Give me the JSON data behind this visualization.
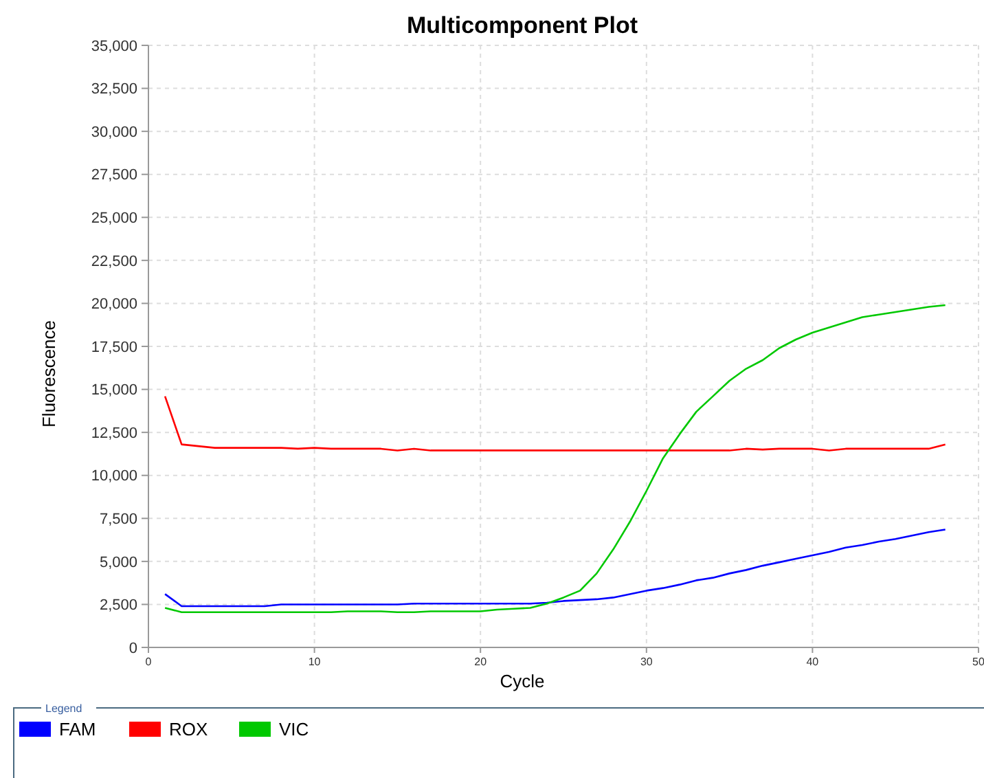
{
  "chart_data": {
    "type": "line",
    "title": "Multicomponent Plot",
    "xlabel": "Cycle",
    "ylabel": "Fluorescence",
    "legend_title": "Legend",
    "legend": "bottom",
    "grid": true,
    "line_style": "solid",
    "x": [
      1,
      2,
      3,
      4,
      5,
      6,
      7,
      8,
      9,
      10,
      11,
      12,
      13,
      14,
      15,
      16,
      17,
      18,
      19,
      20,
      21,
      22,
      23,
      24,
      25,
      26,
      27,
      28,
      29,
      30,
      31,
      32,
      33,
      34,
      35,
      36,
      37,
      38,
      39,
      40,
      41,
      42,
      43,
      44,
      45,
      46,
      47,
      48
    ],
    "xlim": [
      0,
      50
    ],
    "xticks": [
      0,
      10,
      20,
      30,
      40,
      50
    ],
    "ylim": [
      0,
      35000
    ],
    "yticks": [
      {
        "value": 0,
        "label": "0"
      },
      {
        "value": 2500,
        "label": "2,500"
      },
      {
        "value": 5000,
        "label": "5,000"
      },
      {
        "value": 7500,
        "label": "7,500"
      },
      {
        "value": 10000,
        "label": "10,000"
      },
      {
        "value": 12500,
        "label": "12,500"
      },
      {
        "value": 15000,
        "label": "15,000"
      },
      {
        "value": 17500,
        "label": "17,500"
      },
      {
        "value": 20000,
        "label": "20,000"
      },
      {
        "value": 22500,
        "label": "22,500"
      },
      {
        "value": 25000,
        "label": "25,000"
      },
      {
        "value": 27500,
        "label": "27,500"
      },
      {
        "value": 30000,
        "label": "30,000"
      },
      {
        "value": 32500,
        "label": "32,500"
      },
      {
        "value": 35000,
        "label": "35,000"
      }
    ],
    "series": [
      {
        "name": "FAM",
        "color": "#0000ff",
        "values": [
          3100,
          2400,
          2400,
          2400,
          2400,
          2400,
          2400,
          2500,
          2500,
          2500,
          2500,
          2500,
          2500,
          2500,
          2500,
          2550,
          2550,
          2550,
          2550,
          2550,
          2550,
          2550,
          2550,
          2600,
          2700,
          2750,
          2800,
          2900,
          3100,
          3300,
          3450,
          3650,
          3900,
          4050,
          4300,
          4500,
          4750,
          4950,
          5150,
          5350,
          5550,
          5800,
          5950,
          6150,
          6300,
          6500,
          6700,
          6850
        ]
      },
      {
        "name": "ROX",
        "color": "#ff0000",
        "values": [
          14600,
          11800,
          11700,
          11600,
          11600,
          11600,
          11600,
          11600,
          11550,
          11600,
          11550,
          11550,
          11550,
          11550,
          11450,
          11550,
          11450,
          11450,
          11450,
          11450,
          11450,
          11450,
          11450,
          11450,
          11450,
          11450,
          11450,
          11450,
          11450,
          11450,
          11450,
          11450,
          11450,
          11450,
          11450,
          11550,
          11500,
          11550,
          11550,
          11550,
          11450,
          11550,
          11550,
          11550,
          11550,
          11550,
          11550,
          11800
        ]
      },
      {
        "name": "VIC",
        "color": "#00c800",
        "values": [
          2300,
          2050,
          2050,
          2050,
          2050,
          2050,
          2050,
          2050,
          2050,
          2050,
          2050,
          2100,
          2100,
          2100,
          2050,
          2050,
          2100,
          2100,
          2100,
          2100,
          2200,
          2250,
          2300,
          2550,
          2900,
          3300,
          4300,
          5700,
          7300,
          9100,
          11000,
          12400,
          13700,
          14600,
          15500,
          16200,
          16700,
          17400,
          17900,
          18300,
          18600,
          18900,
          19200,
          19350,
          19500,
          19650,
          19800,
          19900
        ]
      }
    ]
  }
}
